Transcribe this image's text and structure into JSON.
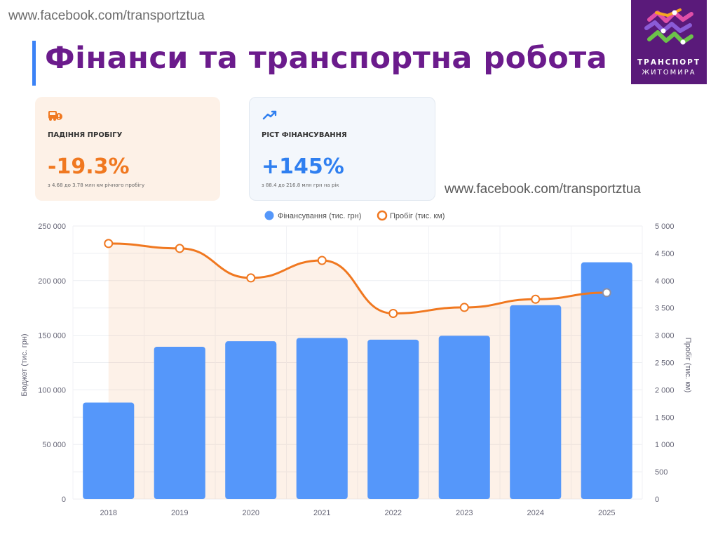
{
  "watermark_url": "www.facebook.com/transportztua",
  "page_title": "Фінанси та транспортна робота",
  "logo": {
    "line1": "ТРАНСПОРТ",
    "line2": "ЖИТОМИРА"
  },
  "cards": {
    "mileage": {
      "label": "ПАДІННЯ ПРОБІГУ",
      "value": "-19.3%",
      "sub": "з 4.68 до 3.78 млн км річного пробігу",
      "color": "#f07820"
    },
    "funding": {
      "label": "РІСТ ФІНАНСУВАННЯ",
      "value": "+145%",
      "sub": "з 88.4 до 216.8 млн грн на рік",
      "color": "#2f7ff0"
    }
  },
  "chart_data": {
    "type": "bar",
    "categories": [
      "2018",
      "2019",
      "2020",
      "2021",
      "2022",
      "2023",
      "2024",
      "2025"
    ],
    "series": [
      {
        "name": "Фінансування (тис. грн)",
        "type": "bar",
        "axis": "left",
        "color": "#5597fa",
        "values": [
          88400,
          139500,
          144500,
          147500,
          146000,
          149500,
          177500,
          216800
        ]
      },
      {
        "name": "Пробіг (тис. км)",
        "type": "line",
        "axis": "right",
        "color": "#f07820",
        "area": true,
        "values": [
          4680,
          4590,
          4050,
          4370,
          3400,
          3510,
          3660,
          3780
        ]
      }
    ],
    "y_left": {
      "label": "Бюджет (тис. грн)",
      "min": 0,
      "max": 250000,
      "ticks": [
        "0",
        "50 000",
        "100 000",
        "150 000",
        "200 000",
        "250 000"
      ]
    },
    "y_right": {
      "label": "Пробіг (тис. км)",
      "min": 0,
      "max": 5000,
      "ticks": [
        "0",
        "500",
        "1 000",
        "1 500",
        "2 000",
        "2 500",
        "3 000",
        "3 500",
        "4 000",
        "4 500",
        "5 000"
      ]
    },
    "legend_position": "top-center",
    "grid": true
  }
}
